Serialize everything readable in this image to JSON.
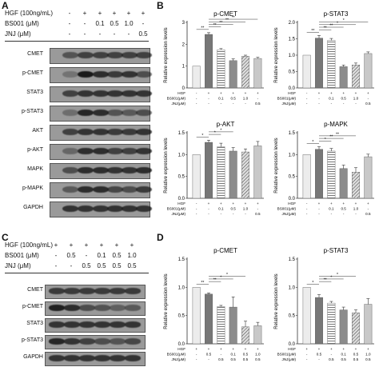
{
  "panels": {
    "A": {
      "label": "A",
      "treatments": [
        {
          "name": "HGF (100ng/mL)",
          "signs": [
            "-",
            "+",
            "+",
            "+",
            "+",
            "+"
          ]
        },
        {
          "name": "BS001 (μM)",
          "signs": [
            "-",
            "-",
            "0.1",
            "0.5",
            "1.0",
            "-"
          ]
        },
        {
          "name": "JNJ (μM)",
          "signs": [
            "-",
            "-",
            "-",
            "-",
            "-",
            "0.5"
          ]
        }
      ],
      "blots": [
        {
          "name": "CMET",
          "intensity": [
            0.55,
            0.7,
            0.7,
            0.7,
            0.7,
            0.7
          ]
        },
        {
          "name": "p-CMET",
          "intensity": [
            0.3,
            1.0,
            0.85,
            0.75,
            0.8,
            0.6
          ]
        },
        {
          "name": "STAT3",
          "intensity": [
            0.7,
            0.8,
            0.8,
            0.8,
            0.8,
            0.8
          ]
        },
        {
          "name": "p-STAT3",
          "intensity": [
            0.35,
            0.9,
            0.85,
            0.55,
            0.5,
            0.6
          ]
        },
        {
          "name": "AKT",
          "intensity": [
            0.7,
            0.8,
            0.8,
            0.75,
            0.75,
            0.8
          ]
        },
        {
          "name": "p-AKT",
          "intensity": [
            0.4,
            0.85,
            0.85,
            0.7,
            0.7,
            0.8
          ]
        },
        {
          "name": "MAPK",
          "intensity": [
            0.6,
            0.85,
            0.85,
            0.8,
            0.8,
            0.85
          ]
        },
        {
          "name": "p-MAPK",
          "intensity": [
            0.5,
            0.85,
            0.85,
            0.65,
            0.6,
            0.75
          ]
        },
        {
          "name": "GAPDH",
          "intensity": [
            0.8,
            0.8,
            0.8,
            0.8,
            0.8,
            0.8
          ]
        }
      ]
    },
    "B": {
      "label": "B",
      "table_rows": [
        "HGF",
        "BS001(μM)",
        "JNJ(μM)"
      ],
      "table_values": [
        [
          "-",
          "+",
          "+",
          "+",
          "+",
          "+"
        ],
        [
          "-",
          "-",
          "0.1",
          "0.5",
          "1.0",
          "-"
        ],
        [
          "-",
          "-",
          "-",
          "-",
          "-",
          "0.5"
        ]
      ]
    },
    "C": {
      "label": "C",
      "treatments": [
        {
          "name": "HGF (100ng/mL)",
          "signs": [
            "+",
            "+",
            "+",
            "+",
            "+",
            "+"
          ]
        },
        {
          "name": "BS001 (μM)",
          "signs": [
            "-",
            "0.5",
            "-",
            "0.1",
            "0.5",
            "1.0"
          ]
        },
        {
          "name": "JNJ (μM)",
          "signs": [
            "-",
            "-",
            "0.5",
            "0.5",
            "0.5",
            "0.5"
          ]
        }
      ],
      "blots": [
        {
          "name": "CMET",
          "intensity": [
            0.75,
            0.75,
            0.75,
            0.75,
            0.75,
            0.75
          ]
        },
        {
          "name": "p-CMET",
          "intensity": [
            0.95,
            0.85,
            0.6,
            0.55,
            0.45,
            0.5
          ]
        },
        {
          "name": "STAT3",
          "intensity": [
            0.8,
            0.8,
            0.8,
            0.8,
            0.8,
            0.8
          ]
        },
        {
          "name": "p-STAT3",
          "intensity": [
            0.9,
            0.8,
            0.7,
            0.6,
            0.55,
            0.65
          ]
        },
        {
          "name": "GAPDH",
          "intensity": [
            0.8,
            0.8,
            0.8,
            0.8,
            0.8,
            0.8
          ]
        }
      ]
    },
    "D": {
      "label": "D",
      "table_rows": [
        "HGF",
        "BS001(μM)",
        "JNJ(μM)"
      ],
      "table_values": [
        [
          "+",
          "+",
          "+",
          "+",
          "+",
          "+"
        ],
        [
          "-",
          "0.5",
          "-",
          "0.1",
          "0.5",
          "1.0"
        ],
        [
          "-",
          "-",
          "0.5",
          "0.5",
          "0.5",
          "0.5"
        ]
      ]
    }
  },
  "bar_patterns": [
    "white",
    "darkgray",
    "hlines",
    "gray",
    "diag",
    "lightgray"
  ],
  "chart_data": [
    {
      "type": "bar",
      "panel": "B",
      "title": "p-CMET",
      "ylabel": "Relative expression levels",
      "ylim": [
        0,
        3
      ],
      "yticks": [
        0,
        1,
        2,
        3
      ],
      "values": [
        1.0,
        2.45,
        1.75,
        1.25,
        1.45,
        1.35
      ],
      "errors": [
        0,
        0.08,
        0.05,
        0.08,
        0.05,
        0.05
      ],
      "sig_marks": [
        "**",
        "**",
        "**",
        "**",
        "**"
      ]
    },
    {
      "type": "bar",
      "panel": "B",
      "title": "p-STAT3",
      "ylabel": "Relative expression levels",
      "ylim": [
        0,
        2.0
      ],
      "yticks": [
        0,
        0.5,
        1.0,
        1.5,
        2.0
      ],
      "values": [
        1.0,
        1.52,
        1.45,
        0.65,
        0.7,
        1.05
      ],
      "errors": [
        0,
        0.08,
        0.06,
        0.05,
        0.06,
        0.05
      ],
      "sig_marks": [
        "**",
        "**",
        "**",
        "*",
        "*"
      ]
    },
    {
      "type": "bar",
      "panel": "B",
      "title": "p-AKT",
      "ylabel": "Relative expression levels",
      "ylim": [
        0,
        1.5
      ],
      "yticks": [
        0,
        0.5,
        1.0,
        1.5
      ],
      "values": [
        1.0,
        1.28,
        1.18,
        1.08,
        1.06,
        1.2
      ],
      "errors": [
        0,
        0.05,
        0.08,
        0.08,
        0.07,
        0.1
      ],
      "sig_marks": [
        "*",
        "*",
        "*"
      ]
    },
    {
      "type": "bar",
      "panel": "B",
      "title": "p-MAPK",
      "ylabel": "Relative expression levels",
      "ylim": [
        0,
        1.5
      ],
      "yticks": [
        0,
        0.5,
        1.0,
        1.5
      ],
      "values": [
        1.0,
        1.12,
        1.08,
        0.68,
        0.6,
        0.95
      ],
      "errors": [
        0,
        0.06,
        0.06,
        0.08,
        0.1,
        0.06
      ],
      "sig_marks": [
        "*",
        "*",
        "**",
        "**"
      ]
    },
    {
      "type": "bar",
      "panel": "D",
      "title": "p-CMET",
      "ylabel": "Relative expression levels",
      "ylim": [
        0,
        1.5
      ],
      "yticks": [
        0,
        0.5,
        1.0,
        1.5
      ],
      "values": [
        1.0,
        0.88,
        0.66,
        0.65,
        0.3,
        0.32
      ],
      "errors": [
        0,
        0.02,
        0.02,
        0.18,
        0.1,
        0.06
      ],
      "sig_marks": [
        "**",
        "**",
        "*",
        "*"
      ]
    },
    {
      "type": "bar",
      "panel": "D",
      "title": "p-STAT3",
      "ylabel": "Relative expression levels",
      "ylim": [
        0,
        1.5
      ],
      "yticks": [
        0,
        0.5,
        1.0,
        1.5
      ],
      "values": [
        1.0,
        0.82,
        0.72,
        0.6,
        0.55,
        0.7
      ],
      "errors": [
        0,
        0.05,
        0.03,
        0.05,
        0.05,
        0.1
      ],
      "sig_marks": [
        "*",
        "**",
        "*",
        "*"
      ]
    }
  ]
}
